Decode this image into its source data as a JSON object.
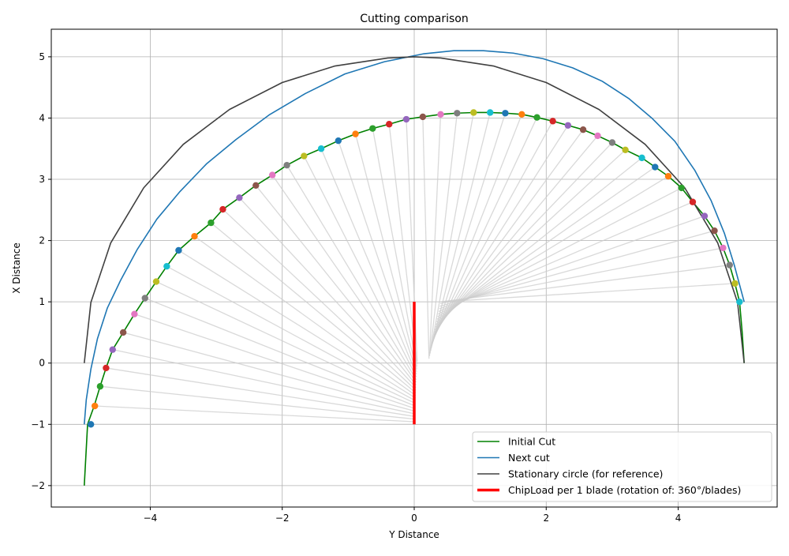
{
  "chart_data": {
    "type": "line",
    "title": "Cutting comparison",
    "xlabel": "Y Distance",
    "ylabel": "X Distance",
    "xlim": [
      -5.5,
      5.5
    ],
    "ylim": [
      -2.35,
      5.45
    ],
    "xticks": [
      -4,
      -2,
      0,
      2,
      4
    ],
    "yticks": [
      -2,
      -1,
      0,
      1,
      2,
      3,
      4,
      5
    ],
    "grid": true,
    "legend_position": "lower-right",
    "series": [
      {
        "name": "Initial Cut",
        "color": "#008000",
        "x": [
          -5.0,
          -4.95,
          -4.85,
          -4.76,
          -4.67,
          -4.57,
          -4.41,
          -4.24,
          -4.08,
          -3.91,
          -3.75,
          -3.57,
          -3.33,
          -3.08,
          -2.9,
          -2.65,
          -2.4,
          -2.15,
          -1.93,
          -1.67,
          -1.41,
          -1.15,
          -0.89,
          -0.63,
          -0.38,
          -0.12,
          0.13,
          0.4,
          0.65,
          0.9,
          1.15,
          1.38,
          1.63,
          1.86,
          2.1,
          2.33,
          2.56,
          2.78,
          3.0,
          3.2,
          3.45,
          3.65,
          3.85,
          4.05,
          4.22,
          4.4,
          4.55,
          4.68,
          4.78,
          4.86,
          4.93,
          4.97,
          5.0
        ],
        "y": [
          -2.0,
          -1.0,
          -0.7,
          -0.38,
          -0.08,
          0.22,
          0.5,
          0.8,
          1.06,
          1.33,
          1.58,
          1.84,
          2.07,
          2.29,
          2.51,
          2.7,
          2.9,
          3.07,
          3.23,
          3.38,
          3.5,
          3.63,
          3.74,
          3.83,
          3.9,
          3.98,
          4.02,
          4.06,
          4.08,
          4.09,
          4.09,
          4.08,
          4.06,
          4.01,
          3.95,
          3.88,
          3.81,
          3.71,
          3.6,
          3.48,
          3.35,
          3.2,
          3.05,
          2.86,
          2.63,
          2.4,
          2.16,
          1.88,
          1.6,
          1.3,
          1.0,
          0.5,
          0.0
        ]
      },
      {
        "name": "Next cut",
        "color": "#1f77b4",
        "x": [
          -5.0,
          -4.97,
          -4.9,
          -4.8,
          -4.65,
          -4.45,
          -4.2,
          -3.9,
          -3.55,
          -3.15,
          -2.7,
          -2.2,
          -1.65,
          -1.05,
          -0.45,
          0.15,
          0.6,
          1.05,
          1.5,
          1.95,
          2.4,
          2.85,
          3.25,
          3.6,
          3.95,
          4.25,
          4.5,
          4.7,
          4.85,
          4.95,
          5.0
        ],
        "y": [
          -1.0,
          -0.6,
          -0.1,
          0.4,
          0.9,
          1.35,
          1.85,
          2.35,
          2.8,
          3.25,
          3.65,
          4.05,
          4.4,
          4.72,
          4.92,
          5.05,
          5.1,
          5.1,
          5.06,
          4.97,
          4.82,
          4.6,
          4.32,
          4.0,
          3.62,
          3.15,
          2.65,
          2.12,
          1.6,
          1.2,
          1.0
        ]
      },
      {
        "name": "Stationary circle (for reference)",
        "color": "#404040",
        "x": [
          -5.0,
          -4.9,
          -4.6,
          -4.1,
          -3.5,
          -2.8,
          -2.0,
          -1.2,
          -0.4,
          0.0,
          0.4,
          1.2,
          2.0,
          2.8,
          3.5,
          4.1,
          4.6,
          4.9,
          5.0
        ],
        "y": [
          0.0,
          0.99,
          1.96,
          2.86,
          3.57,
          4.14,
          4.58,
          4.85,
          4.98,
          5.0,
          4.98,
          4.85,
          4.58,
          4.14,
          3.57,
          2.86,
          1.96,
          0.99,
          0.0
        ]
      },
      {
        "name": "ChipLoad per 1 blade (rotation of: 360°/blades)",
        "color": "#ff0000",
        "x": [
          0,
          0
        ],
        "y": [
          -1,
          1
        ]
      }
    ],
    "scatter_points": {
      "x": [
        -4.9,
        -4.84,
        -4.76,
        -4.67,
        -4.57,
        -4.41,
        -4.24,
        -4.08,
        -3.91,
        -3.75,
        -3.57,
        -3.33,
        -3.08,
        -2.9,
        -2.65,
        -2.4,
        -2.15,
        -1.93,
        -1.67,
        -1.41,
        -1.15,
        -0.89,
        -0.63,
        -0.38,
        -0.12,
        0.13,
        0.4,
        0.65,
        0.9,
        1.15,
        1.38,
        1.63,
        1.86,
        2.1,
        2.33,
        2.56,
        2.78,
        3.0,
        3.2,
        3.45,
        3.65,
        3.85,
        4.05,
        4.22,
        4.4,
        4.55,
        4.68,
        4.78,
        4.86,
        4.93
      ],
      "y": [
        -1.0,
        -0.7,
        -0.38,
        -0.08,
        0.22,
        0.5,
        0.8,
        1.06,
        1.33,
        1.58,
        1.84,
        2.07,
        2.29,
        2.51,
        2.7,
        2.9,
        3.07,
        3.23,
        3.38,
        3.5,
        3.63,
        3.74,
        3.83,
        3.9,
        3.98,
        4.02,
        4.06,
        4.08,
        4.09,
        4.09,
        4.08,
        4.06,
        4.01,
        3.95,
        3.88,
        3.81,
        3.71,
        3.6,
        3.48,
        3.35,
        3.2,
        3.05,
        2.86,
        2.63,
        2.4,
        2.16,
        1.88,
        1.6,
        1.3,
        1.0
      ],
      "colors": [
        "#1f77b4",
        "#ff7f0e",
        "#2ca02c",
        "#d62728",
        "#9467bd",
        "#8c564b",
        "#e377c2",
        "#7f7f7f",
        "#bcbd22",
        "#17becf"
      ]
    },
    "radial_lines_color": "#cccccc"
  }
}
